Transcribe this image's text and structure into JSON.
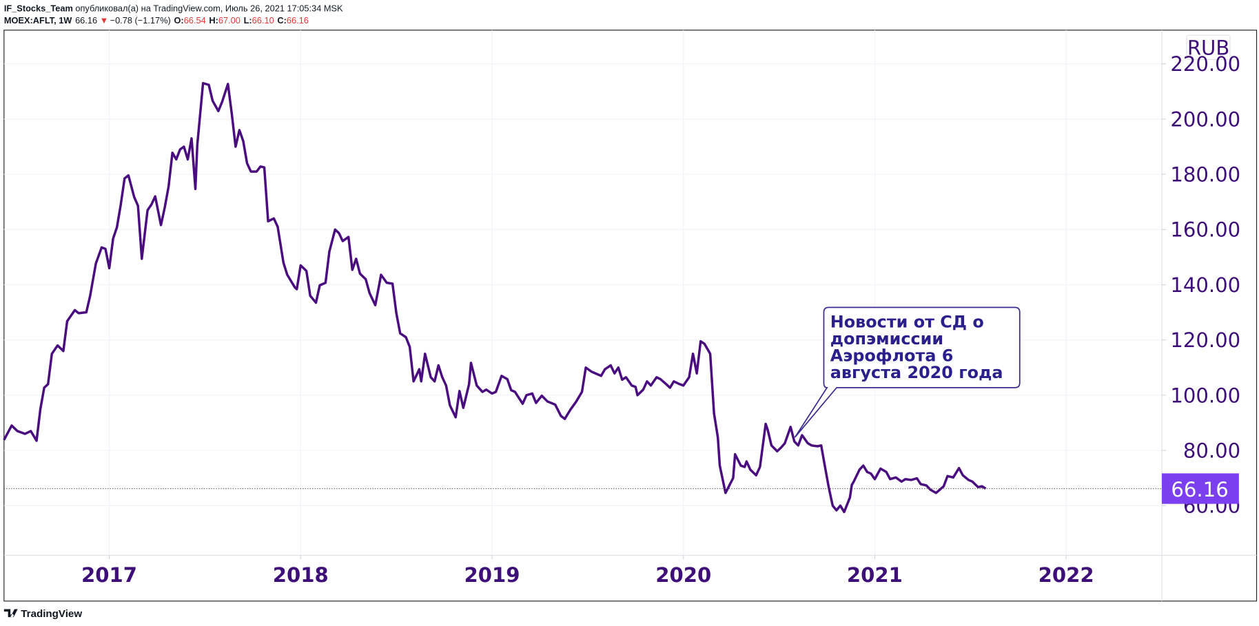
{
  "header": {
    "author": "IF_Stocks_Team",
    "published": "опубликовал(а) на TradingView.com, Июль 26, 2021 17:05:34 MSK",
    "symbol": "MOEX:AFLT, 1W",
    "last": "66.16",
    "arrow": "▼",
    "change": "−0.78 (−1.17%)",
    "ohlc": [
      {
        "label": "O:",
        "value": "66.54"
      },
      {
        "label": "H:",
        "value": "67.00"
      },
      {
        "label": "L:",
        "value": "66.10"
      },
      {
        "label": "C:",
        "value": "66.16"
      }
    ]
  },
  "footer": {
    "brand": "TradingView"
  },
  "chart_data": {
    "type": "line",
    "currency": "RUB",
    "color": "#4a0d80",
    "annotation": {
      "lines": [
        "Новости от СД о",
        "допэмиссии",
        "Аэрофлота 6",
        "августа 2020 года"
      ]
    },
    "x": [
      2016.45,
      2016.49,
      2016.52,
      2016.56,
      2016.59,
      2016.62,
      2016.64,
      2016.66,
      2016.68,
      2016.7,
      2016.73,
      2016.76,
      2016.78,
      2016.82,
      2016.84,
      2016.88,
      2016.9,
      2016.93,
      2016.96,
      2016.98,
      2017.0,
      2017.02,
      2017.04,
      2017.06,
      2017.08,
      2017.1,
      2017.13,
      2017.15,
      2017.17,
      2017.2,
      2017.22,
      2017.24,
      2017.27,
      2017.29,
      2017.31,
      2017.33,
      2017.35,
      2017.37,
      2017.39,
      2017.41,
      2017.43,
      2017.45,
      2017.46,
      2017.49,
      2017.52,
      2017.54,
      2017.57,
      2017.59,
      2017.62,
      2017.64,
      2017.66,
      2017.68,
      2017.7,
      2017.72,
      2017.74,
      2017.77,
      2017.79,
      2017.81,
      2017.83,
      2017.86,
      2017.88,
      2017.91,
      2017.93,
      2017.97,
      2017.98,
      2018.0,
      2018.03,
      2018.05,
      2018.08,
      2018.1,
      2018.13,
      2018.15,
      2018.18,
      2018.2,
      2018.22,
      2018.25,
      2018.27,
      2018.29,
      2018.31,
      2018.34,
      2018.36,
      2018.39,
      2018.41,
      2018.42,
      2018.45,
      2018.48,
      2018.5,
      2018.52,
      2018.55,
      2018.57,
      2018.59,
      2018.62,
      2018.63,
      2018.65,
      2018.68,
      2018.7,
      2018.72,
      2018.74,
      2018.76,
      2018.78,
      2018.81,
      2018.83,
      2018.85,
      2018.88,
      2018.89,
      2018.92,
      2018.95,
      2018.97,
      2019.0,
      2019.02,
      2019.05,
      2019.08,
      2019.1,
      2019.12,
      2019.16,
      2019.18,
      2019.21,
      2019.23,
      2019.26,
      2019.29,
      2019.33,
      2019.36,
      2019.38,
      2019.41,
      2019.44,
      2019.47,
      2019.49,
      2019.52,
      2019.54,
      2019.57,
      2019.59,
      2019.62,
      2019.64,
      2019.66,
      2019.68,
      2019.7,
      2019.73,
      2019.75,
      2019.76,
      2019.79,
      2019.81,
      2019.83,
      2019.86,
      2019.88,
      2019.91,
      2019.93,
      2019.95,
      2019.98,
      2020.0,
      2020.03,
      2020.05,
      2020.07,
      2020.09,
      2020.11,
      2020.14,
      2020.16,
      2020.18,
      2020.19,
      2020.22,
      2020.24,
      2020.26,
      2020.27,
      2020.3,
      2020.32,
      2020.33,
      2020.35,
      2020.38,
      2020.4,
      2020.43,
      2020.44,
      2020.46,
      2020.49,
      2020.51,
      2020.53,
      2020.56,
      2020.58,
      2020.6,
      2020.62,
      2020.65,
      2020.67,
      2020.7,
      2020.72,
      2020.74,
      2020.76,
      2020.78,
      2020.8,
      2020.82,
      2020.84,
      2020.87,
      2020.88,
      2020.89,
      2020.92,
      2020.94,
      2020.96,
      2020.98,
      2021.0,
      2021.03,
      2021.06,
      2021.08,
      2021.11,
      2021.14,
      2021.16,
      2021.19,
      2021.22,
      2021.24,
      2021.27,
      2021.29,
      2021.32,
      2021.36,
      2021.38,
      2021.41,
      2021.44,
      2021.46,
      2021.49,
      2021.51,
      2021.54,
      2021.56,
      2021.58
    ],
    "values": [
      83.8,
      89,
      87,
      86,
      87,
      83.5,
      95,
      102.7,
      104,
      115,
      118,
      116,
      126.8,
      130.8,
      129.7,
      130,
      136,
      147.7,
      153.5,
      153,
      146,
      156.7,
      160.8,
      169,
      178.5,
      179.6,
      171.8,
      168.6,
      149.4,
      167,
      169,
      172,
      161.6,
      168,
      175.6,
      187.8,
      185.4,
      189,
      190,
      185.4,
      193,
      174.7,
      190.7,
      213,
      212.4,
      206.6,
      202.9,
      206.3,
      212.7,
      202,
      190,
      196,
      192,
      184,
      181,
      181,
      182.8,
      182.5,
      163,
      164,
      161,
      148,
      143.6,
      139,
      138.4,
      147,
      145,
      136,
      133.5,
      139.8,
      140.7,
      152,
      160,
      158.7,
      155.8,
      157.3,
      145.4,
      149.4,
      144,
      142,
      137,
      132.6,
      139.8,
      143.6,
      140.7,
      140.4,
      129.7,
      122.4,
      121,
      117.5,
      105,
      109.4,
      105,
      115,
      106.5,
      105,
      110.8,
      106.5,
      103.5,
      96.3,
      92,
      101.5,
      95.4,
      104,
      111.7,
      103.5,
      101.2,
      102,
      100.6,
      101.2,
      107,
      105.8,
      101.8,
      101.2,
      96.9,
      100,
      100.6,
      97.2,
      99.8,
      97.7,
      96.6,
      92.5,
      91.4,
      94.8,
      97.7,
      101.2,
      110,
      108.5,
      107.9,
      107,
      109.4,
      110.8,
      107.9,
      110,
      105.6,
      106.5,
      103.5,
      103,
      100,
      102,
      105,
      103.5,
      106.5,
      105.8,
      104,
      102.7,
      105,
      104,
      103.5,
      106.5,
      115,
      107.9,
      119.5,
      118.6,
      115,
      93.4,
      84.7,
      74.5,
      64.6,
      67.3,
      70,
      78.6,
      74.5,
      74,
      76,
      73,
      71,
      74,
      89.6,
      87.6,
      81.8,
      79.7,
      81,
      82.6,
      88.5,
      83.2,
      81.8,
      85.5,
      82.6,
      81.8,
      81.5,
      81.8,
      74,
      66.4,
      60,
      58.3,
      60,
      57.7,
      62.9,
      67.5,
      68.7,
      73,
      74.5,
      72.2,
      71.6,
      69.6,
      73.4,
      72.2,
      69.6,
      70.2,
      68.7,
      69.6,
      69.3,
      69.9,
      67.8,
      67.3,
      65.8,
      64.6,
      67,
      70.7,
      70.2,
      73.6,
      71,
      69.3,
      68.7,
      66.7,
      67,
      66.16
    ],
    "xlim": [
      2016.45,
      2022.5
    ],
    "xticks": [
      2017,
      2018,
      2019,
      2020,
      2021,
      2022
    ],
    "ylim": [
      42,
      232.2
    ],
    "yticks": [
      {
        "value": 60,
        "label": "60.00"
      },
      {
        "value": 80,
        "label": "80.00"
      },
      {
        "value": 100,
        "label": "100.00"
      },
      {
        "value": 120,
        "label": "120.00"
      },
      {
        "value": 140,
        "label": "140.00"
      },
      {
        "value": 160,
        "label": "160.00"
      },
      {
        "value": 180,
        "label": "180.00"
      },
      {
        "value": 200,
        "label": "200.00"
      },
      {
        "value": 220,
        "label": "220.00"
      }
    ],
    "grid": true
  }
}
